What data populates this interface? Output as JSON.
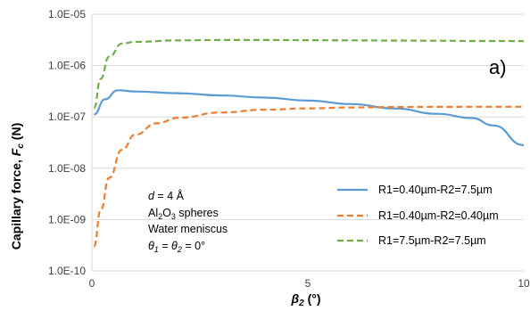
{
  "chart_data": {
    "type": "line",
    "title": "",
    "panel_label": "a)",
    "xlabel": {
      "main": "β",
      "sub": "2",
      "unit": " (°)"
    },
    "ylabel": {
      "pre": "Capillary force, ",
      "main": "F",
      "sub": "c",
      "unit": " (N)"
    },
    "xlim": [
      0,
      10
    ],
    "ylim": [
      1e-10,
      1e-05
    ],
    "yscale": "log",
    "xticks": [
      0,
      5,
      10
    ],
    "xtick_labels": [
      "0",
      "5",
      "10"
    ],
    "yticks": [
      1e-10,
      1e-09,
      1e-08,
      1e-07,
      1e-06,
      1e-05
    ],
    "ytick_labels": [
      "1.0E-10",
      "1.0E-09",
      "1.0E-08",
      "1.0E-07",
      "1.0E-06",
      "1.0E-05"
    ],
    "grid": "horizontal",
    "legend_position": "bottom-right",
    "annotation": {
      "line1": {
        "pre": "d",
        "post": " = 4 Å"
      },
      "line2": {
        "pre": "Al",
        "sub1": "2",
        "mid": "O",
        "sub2": "3",
        "post": " spheres"
      },
      "line3": "Water meniscus",
      "line4": {
        "t1": "θ",
        "s1": "1",
        "eq": " = ",
        "t2": "θ",
        "s2": "2",
        "post": " = 0°"
      }
    },
    "series": [
      {
        "name": "R1=0.40µm-R2=7.5µm",
        "color": "#5b9bd5",
        "dash": "solid",
        "x": [
          0.05,
          0.3,
          0.6,
          1.0,
          2.0,
          3.0,
          4.0,
          5.0,
          6.0,
          7.0,
          8.0,
          8.8,
          9.3,
          10.0
        ],
        "y": [
          1.12e-07,
          2.2e-07,
          3.3e-07,
          3.12e-07,
          2.9e-07,
          2.62e-07,
          2.38e-07,
          2.08e-07,
          1.78e-07,
          1.46e-07,
          1.15e-07,
          9.5e-08,
          6.8e-08,
          2.8e-08
        ]
      },
      {
        "name": "R1=0.40µm-R2=0.40µm",
        "color": "#ed7d31",
        "dash": "dashed",
        "x": [
          0.05,
          0.2,
          0.4,
          0.7,
          1.0,
          1.5,
          2.0,
          3.0,
          4.0,
          5.0,
          6.0,
          7.0,
          8.0,
          9.0,
          10.0
        ],
        "y": [
          3e-10,
          1.5e-09,
          6.5e-09,
          2.3e-08,
          4.5e-08,
          7.5e-08,
          9.6e-08,
          1.22e-07,
          1.38e-07,
          1.47e-07,
          1.53e-07,
          1.56e-07,
          1.57e-07,
          1.58e-07,
          1.58e-07
        ]
      },
      {
        "name": "R1=7.5µm-R2=7.5µm",
        "color": "#70ad47",
        "dash": "dashed",
        "x": [
          0.05,
          0.2,
          0.4,
          0.7,
          1.0,
          2.0,
          3.0,
          4.0,
          5.0,
          6.0,
          7.0,
          8.0,
          9.0,
          10.0
        ],
        "y": [
          1.5e-07,
          5.5e-07,
          1.5e-06,
          2.7e-06,
          2.9e-06,
          3.1e-06,
          3.15e-06,
          3.15e-06,
          3.12e-06,
          3.1e-06,
          3.08e-06,
          3.05e-06,
          3.02e-06,
          3e-06
        ]
      }
    ]
  }
}
